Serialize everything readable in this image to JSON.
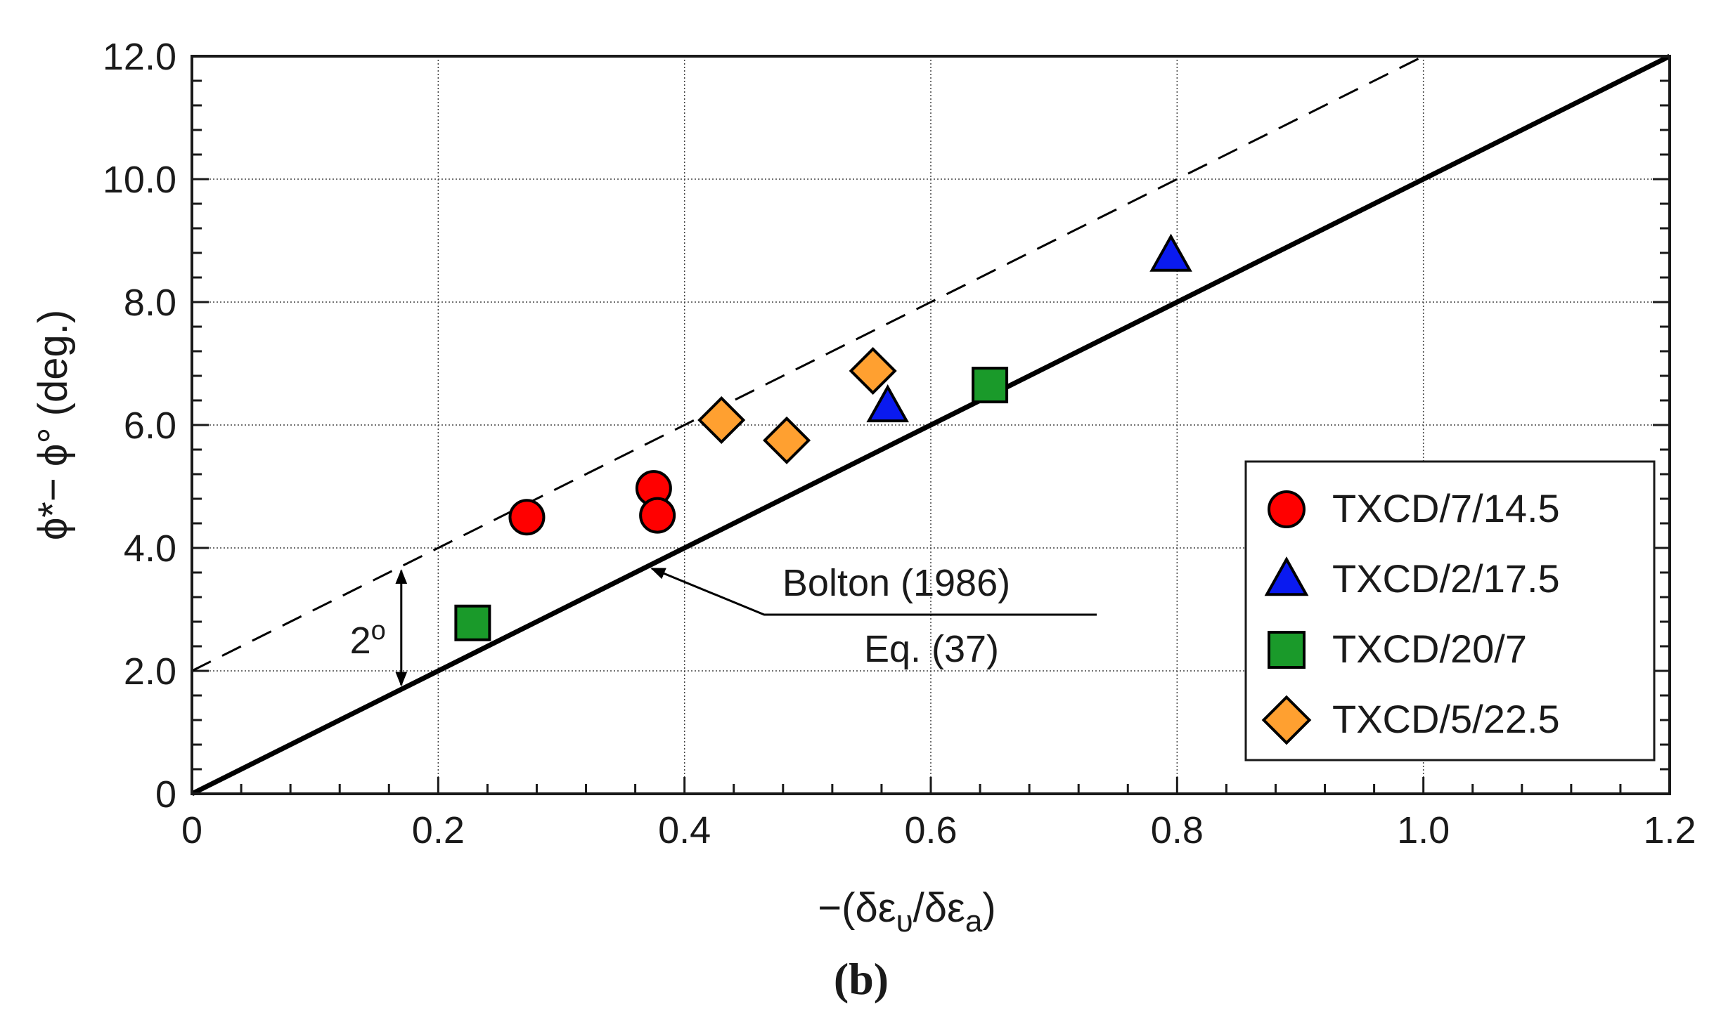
{
  "chart_data": {
    "type": "scatter",
    "xlabel": "−(δε",
    "xlabel_sub1": "υ",
    "xlabel_mid": "/δε",
    "xlabel_sub2": "a",
    "xlabel_end": ")",
    "ylabel": "ϕ*− ϕ° (deg.)",
    "xlim": [
      0,
      1.2
    ],
    "ylim": [
      0,
      12
    ],
    "x_ticks": [
      0,
      0.2,
      0.4,
      0.6,
      0.8,
      1.0,
      1.2
    ],
    "x_tick_labels": [
      "0",
      "0.2",
      "0.4",
      "0.6",
      "0.8",
      "1.0",
      "1.2"
    ],
    "y_ticks": [
      0,
      2,
      4,
      6,
      8,
      10,
      12
    ],
    "y_tick_labels": [
      "0",
      "2.0",
      "4.0",
      "6.0",
      "8.0",
      "10.0",
      "12.0"
    ],
    "x_minor_step": 0.04,
    "y_minor_step": 0.4,
    "grid": true,
    "legend_position": "right",
    "series": [
      {
        "name": "TXCD/7/14.5",
        "marker": "circle",
        "color": "#ff0000",
        "points": [
          [
            0.272,
            4.5
          ],
          [
            0.375,
            4.97
          ],
          [
            0.378,
            4.53
          ]
        ]
      },
      {
        "name": "TXCD/2/17.5",
        "marker": "triangle",
        "color": "#0a1af0",
        "points": [
          [
            0.565,
            6.3
          ],
          [
            0.795,
            8.75
          ]
        ]
      },
      {
        "name": "TXCD/20/7",
        "marker": "square",
        "color": "#1a9a2a",
        "points": [
          [
            0.228,
            2.78
          ],
          [
            0.648,
            6.65
          ]
        ]
      },
      {
        "name": "TXCD/5/22.5",
        "marker": "diamond",
        "color": "#ffa030",
        "points": [
          [
            0.43,
            6.08
          ],
          [
            0.483,
            5.75
          ],
          [
            0.553,
            6.88
          ]
        ]
      }
    ],
    "lines": [
      {
        "name": "Bolton (1986) Eq. (37)",
        "style": "solid",
        "slope": 10,
        "intercept": 0
      },
      {
        "name": "offset line",
        "style": "dashed",
        "slope": 10,
        "intercept": 2
      }
    ],
    "annotations": {
      "offset_label": "2",
      "offset_label_sup": "o",
      "offset_at_x": 0.17,
      "bolton_top": "Bolton (1986)",
      "bolton_bottom": "Eq. (37)",
      "arrow_target": [
        0.37,
        3.7
      ]
    },
    "caption": "(b)"
  },
  "colors": {
    "axis": "#1a1a1a",
    "grid": "#444444",
    "line": "#000000"
  }
}
